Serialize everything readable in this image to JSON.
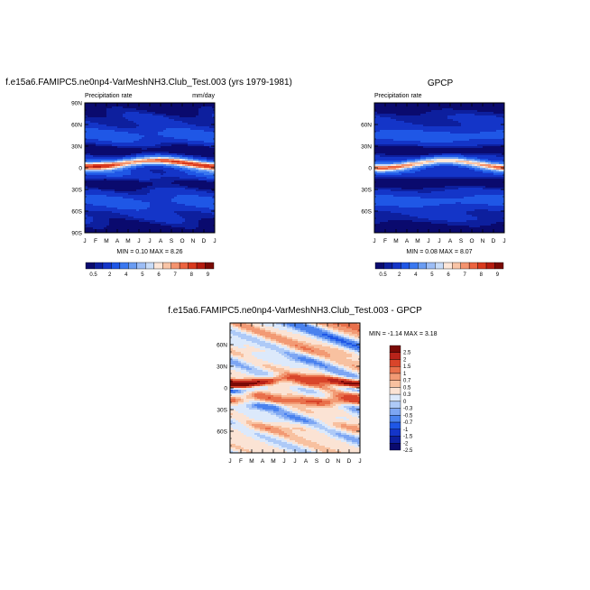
{
  "chart_data": [
    {
      "type": "heatmap",
      "title": "f.e15a6.FAMIPC5.ne0np4-VarMeshNH3.Club_Test.003 (yrs 1979-1981)",
      "subtitle_left": "Precipitation rate",
      "subtitle_right": "mm/day",
      "x_ticks": [
        "J",
        "F",
        "M",
        "A",
        "M",
        "J",
        "J",
        "A",
        "S",
        "O",
        "N",
        "D",
        "J"
      ],
      "y_ticks": [
        "90N",
        "60N",
        "30N",
        "0",
        "30S",
        "60S",
        "90S"
      ],
      "stats": "MIN =   0.10 MAX =    8.26",
      "min": 0.1,
      "max": 8.26,
      "colorbar_labels": [
        "0.5",
        "2",
        "4",
        "5",
        "6",
        "7",
        "8",
        "9"
      ],
      "ylim": [
        -90,
        90
      ]
    },
    {
      "type": "heatmap",
      "title": "GPCP",
      "subtitle_left": "Precipitation rate",
      "x_ticks": [
        "J",
        "F",
        "M",
        "A",
        "M",
        "J",
        "J",
        "A",
        "S",
        "O",
        "N",
        "D",
        "J"
      ],
      "y_ticks": [
        "60N",
        "30N",
        "0",
        "30S",
        "60S"
      ],
      "stats": "MIN =   0.08 MAX =    8.07",
      "min": 0.08,
      "max": 8.07,
      "colorbar_labels": [
        "0.5",
        "2",
        "4",
        "5",
        "6",
        "7",
        "8",
        "9"
      ],
      "ylim": [
        -90,
        90
      ]
    },
    {
      "type": "heatmap",
      "title": "f.e15a6.FAMIPC5.ne0np4-VarMeshNH3.Club_Test.003 - GPCP",
      "x_ticks": [
        "J",
        "F",
        "M",
        "A",
        "M",
        "J",
        "J",
        "A",
        "S",
        "O",
        "N",
        "D",
        "J"
      ],
      "y_ticks": [
        "60N",
        "30N",
        "0",
        "30S",
        "60S"
      ],
      "stats": "MIN =  -1.14 MAX =   3.18",
      "min": -1.14,
      "max": 3.18,
      "colorbar_labels": [
        "2.5",
        "2",
        "1.5",
        "1",
        "0.7",
        "0.5",
        "0.3",
        "0",
        "-0.3",
        "-0.5",
        "-0.7",
        "-1",
        "-1.5",
        "-2",
        "-2.5"
      ],
      "ylim": [
        -90,
        90
      ]
    }
  ],
  "colors": {
    "seq": [
      "#0a0a6e",
      "#0d1f9e",
      "#1435c8",
      "#1f57e6",
      "#3a78f0",
      "#6a9cf2",
      "#9cbdf5",
      "#c8dcf8",
      "#fde6d8",
      "#f9c4a6",
      "#f4936e",
      "#ec6440",
      "#d93a1e",
      "#b51c10",
      "#7a0a06"
    ],
    "div": [
      "#0a0a6e",
      "#0d1f9e",
      "#1435c8",
      "#1f57e6",
      "#4a82ee",
      "#7da6f3",
      "#aecaf7",
      "#dce9fb",
      "#fbe3d4",
      "#f8c1a0",
      "#f29a74",
      "#e9704b",
      "#d9452a",
      "#b8231a",
      "#7a0a06"
    ]
  }
}
